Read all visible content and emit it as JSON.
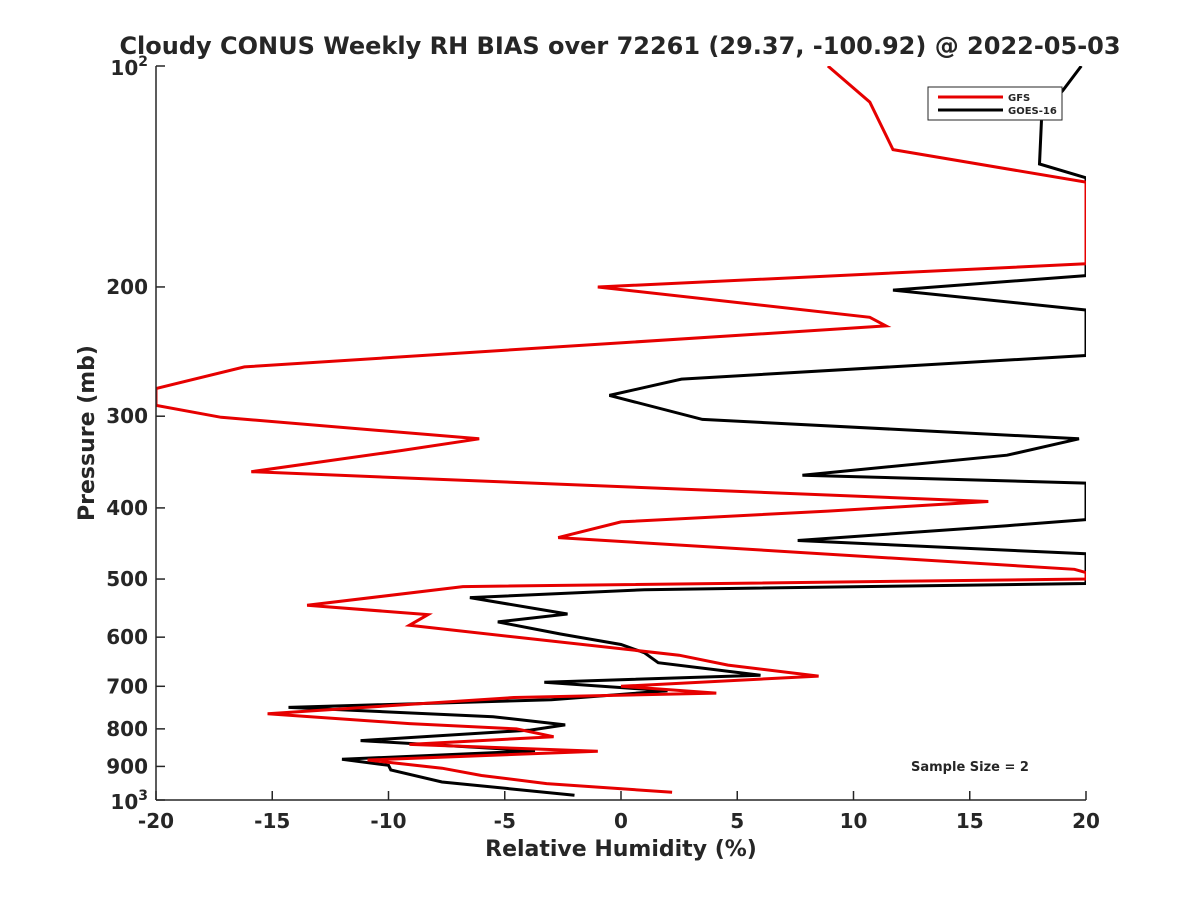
{
  "chart_data": {
    "type": "line",
    "title": "Cloudy CONUS Weekly RH BIAS over 72261 (29.37, -100.92) @ 2022-05-03",
    "xlabel": "Relative Humidity (%)",
    "ylabel": "Pressure (mb)",
    "xlim": [
      -20,
      20
    ],
    "ylim": [
      100,
      1000
    ],
    "y_scale": "log",
    "y_reversed": true,
    "grid": false,
    "legend_position": "top-right",
    "annotation": "Sample Size = 2",
    "x_ticks": [
      "-20",
      "-15",
      "-10",
      "-5",
      "0",
      "5",
      "10",
      "15",
      "20"
    ],
    "y_ticks": [
      {
        "value": 100,
        "base": "10",
        "exp": "2"
      },
      {
        "value": 200,
        "label": "200"
      },
      {
        "value": 300,
        "label": "300"
      },
      {
        "value": 400,
        "label": "400"
      },
      {
        "value": 500,
        "label": "500"
      },
      {
        "value": 600,
        "label": "600"
      },
      {
        "value": 700,
        "label": "700"
      },
      {
        "value": 800,
        "label": "800"
      },
      {
        "value": 900,
        "label": "900"
      },
      {
        "value": 1000,
        "base": "10",
        "exp": "3"
      }
    ],
    "series": [
      {
        "name": "GFS",
        "color": "#e60000",
        "points": [
          [
            8.9,
            100
          ],
          [
            10.7,
            112
          ],
          [
            11.7,
            130
          ],
          [
            20,
            144
          ],
          [
            20,
            186
          ],
          [
            -1,
            200
          ],
          [
            10.7,
            220
          ],
          [
            11.4,
            226
          ],
          [
            -16.2,
            257
          ],
          [
            -20,
            275
          ],
          [
            -20,
            290
          ],
          [
            -17.2,
            301
          ],
          [
            -6.1,
            322
          ],
          [
            -9.4,
            334
          ],
          [
            -15.9,
            357
          ],
          [
            15.8,
            392
          ],
          [
            8.9,
            404
          ],
          [
            0,
            418
          ],
          [
            -2.7,
            439
          ],
          [
            19.5,
            485
          ],
          [
            20,
            490
          ],
          [
            20,
            500
          ],
          [
            -6.8,
            512
          ],
          [
            -13.5,
            543
          ],
          [
            -8.3,
            559
          ],
          [
            -9.1,
            578
          ],
          [
            2.5,
            635
          ],
          [
            4.6,
            655
          ],
          [
            8.5,
            678
          ],
          [
            0,
            700
          ],
          [
            4.1,
            715
          ],
          [
            -4.6,
            725
          ],
          [
            -15.2,
            763
          ],
          [
            -9.1,
            787
          ],
          [
            -4.5,
            800
          ],
          [
            -2.9,
            820
          ],
          [
            -9.1,
            840
          ],
          [
            -1,
            858
          ],
          [
            -10.9,
            882
          ],
          [
            -7.7,
            905
          ],
          [
            -6,
            926
          ],
          [
            -3.2,
            950
          ],
          [
            2.2,
            976
          ]
        ]
      },
      {
        "name": "GOES-16",
        "color": "#000000",
        "points": [
          [
            19.8,
            100
          ],
          [
            19,
            108
          ],
          [
            18.1,
            116
          ],
          [
            18,
            136
          ],
          [
            20,
            142
          ],
          [
            20,
            193
          ],
          [
            11.7,
            202
          ],
          [
            20,
            215
          ],
          [
            20,
            248
          ],
          [
            2.6,
            267
          ],
          [
            -0.5,
            281
          ],
          [
            3.5,
            303
          ],
          [
            19.7,
            322
          ],
          [
            16.6,
            339
          ],
          [
            7.8,
            361
          ],
          [
            20,
            370
          ],
          [
            20,
            415
          ],
          [
            16.6,
            423
          ],
          [
            7.6,
            443
          ],
          [
            20,
            462
          ],
          [
            20,
            507
          ],
          [
            1,
            517
          ],
          [
            -6.5,
            530
          ],
          [
            -2.3,
            558
          ],
          [
            -5.3,
            572
          ],
          [
            -2.6,
            594
          ],
          [
            0,
            614
          ],
          [
            1,
            630
          ],
          [
            1.6,
            650
          ],
          [
            6,
            676
          ],
          [
            -3.3,
            691
          ],
          [
            2,
            710
          ],
          [
            -3,
            730
          ],
          [
            -14.3,
            748
          ],
          [
            -5.5,
            770
          ],
          [
            -2.4,
            790
          ],
          [
            -3.9,
            803
          ],
          [
            -11.2,
            830
          ],
          [
            -3.7,
            857
          ],
          [
            -12,
            880
          ],
          [
            -10,
            897
          ],
          [
            -9.9,
            910
          ],
          [
            -7.7,
            945
          ],
          [
            -2,
            985
          ]
        ]
      }
    ]
  }
}
